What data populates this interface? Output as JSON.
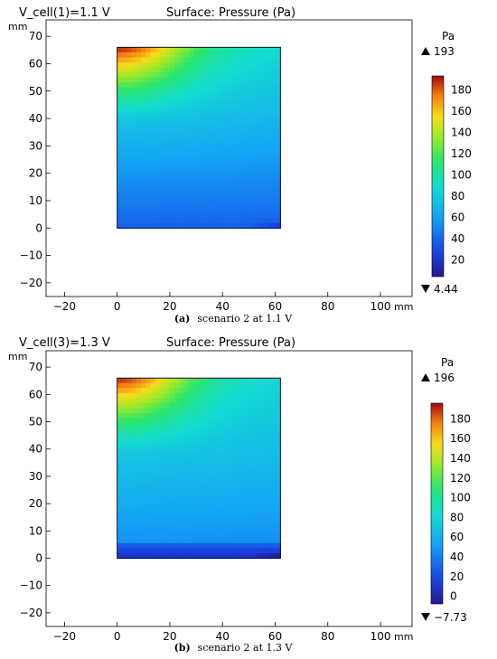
{
  "panels": [
    {
      "header_left": "V_cell(1)=1.1 V",
      "header_title": "Surface: Pressure (Pa)",
      "y_unit": "mm",
      "x_unit": "mm",
      "caption_label": "(a)",
      "caption_text": "scenario 2 at 1.1 V",
      "colorbar_unit": "Pa",
      "colorbar_max_label": "193",
      "colorbar_min_label": "4.44"
    },
    {
      "header_left": "V_cell(3)=1.3 V",
      "header_title": "Surface: Pressure (Pa)",
      "y_unit": "mm",
      "x_unit": "mm",
      "caption_label": "(b)",
      "caption_text": "scenario 2 at 1.3 V",
      "colorbar_unit": "Pa",
      "colorbar_max_label": "196",
      "colorbar_min_label": "−7.73"
    }
  ],
  "chart_data": [
    {
      "type": "heatmap",
      "title": "Surface: Pressure (Pa)",
      "xlabel": "mm",
      "ylabel": "mm",
      "xlim": [
        -27,
        112
      ],
      "ylim": [
        -25,
        76
      ],
      "x_ticks": [
        -20,
        0,
        20,
        40,
        60,
        80,
        100
      ],
      "y_ticks": [
        -20,
        -10,
        0,
        10,
        20,
        30,
        40,
        50,
        60,
        70
      ],
      "domain_rect": {
        "x0": 0,
        "x1": 62,
        "y0": 0,
        "y1": 66
      },
      "colorbar": {
        "min": 4.44,
        "max": 193,
        "ticks": [
          20,
          40,
          60,
          80,
          100,
          120,
          140,
          160,
          180
        ],
        "unit": "Pa"
      },
      "field": {
        "bottom": 38,
        "top_right": 100,
        "top_left": 190,
        "band_low_y": 0,
        "band_high_y": 0
      }
    },
    {
      "type": "heatmap",
      "title": "Surface: Pressure (Pa)",
      "xlabel": "mm",
      "ylabel": "mm",
      "xlim": [
        -27,
        112
      ],
      "ylim": [
        -25,
        76
      ],
      "x_ticks": [
        -20,
        0,
        20,
        40,
        60,
        80,
        100
      ],
      "y_ticks": [
        -20,
        -10,
        0,
        10,
        20,
        30,
        40,
        50,
        60,
        70
      ],
      "domain_rect": {
        "x0": 0,
        "x1": 62,
        "y0": 0,
        "y1": 66
      },
      "colorbar": {
        "min": -7.73,
        "max": 196,
        "ticks": [
          0,
          20,
          40,
          60,
          80,
          100,
          120,
          140,
          160,
          180
        ],
        "unit": "Pa"
      },
      "field": {
        "bottom": 42,
        "top_right": 92,
        "top_left": 192,
        "band_low_y": 5,
        "band_high_y": 0
      }
    }
  ]
}
